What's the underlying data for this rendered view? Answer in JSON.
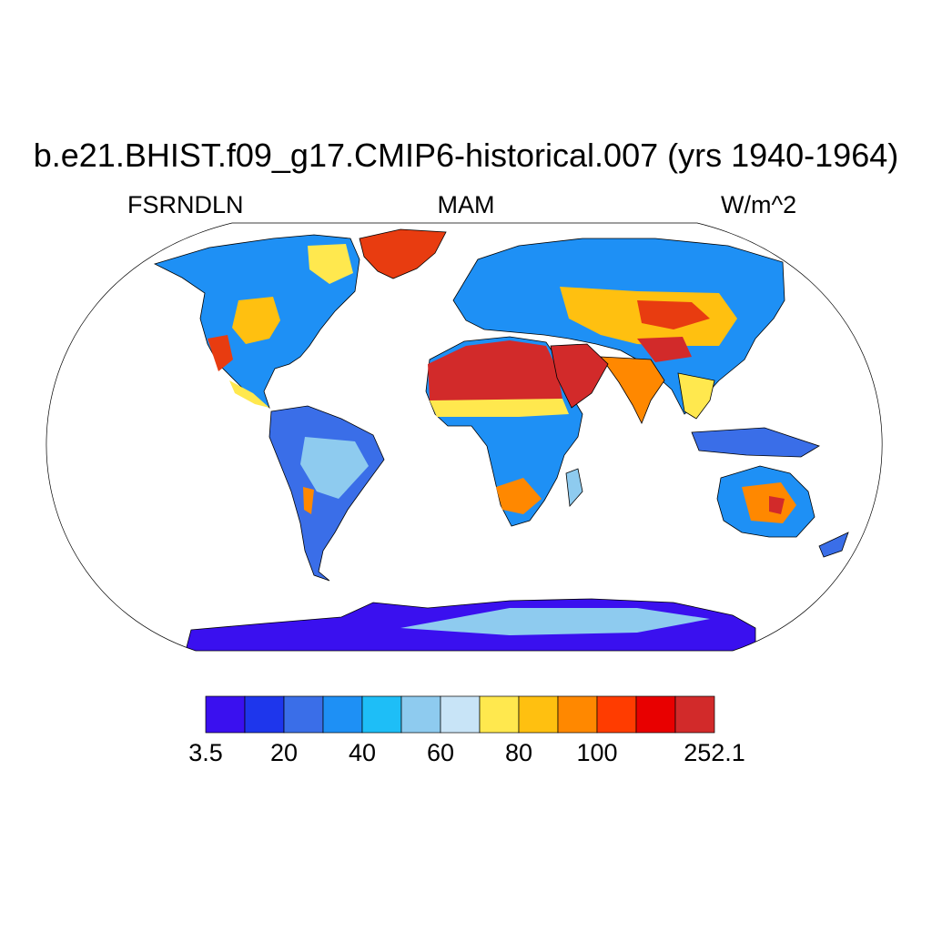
{
  "title": "b.e21.BHIST.f09_g17.CMIP6-historical.007 (yrs 1940-1964)",
  "subtitle_left": "FSRNDLN",
  "subtitle_center": "MAM",
  "subtitle_right": "W/m^2",
  "colorbar": {
    "colors": [
      "#3a10ef",
      "#1e36ec",
      "#3a6ee8",
      "#1e90f5",
      "#1ebef7",
      "#8ecbef",
      "#c8e4f7",
      "#ffe84e",
      "#ffc010",
      "#ff8800",
      "#ff3c00",
      "#e80000",
      "#d22a2a"
    ],
    "labels": [
      "3.5",
      "20",
      "40",
      "60",
      "80",
      "100",
      "252.1"
    ]
  },
  "land_color_key": {
    "sahara": "#d22a2a",
    "arabia": "#d22a2a",
    "greenland": "#e83c10",
    "antarctica": "#3a10ef",
    "antarctic_plateau": "#8ecbef",
    "default_land": "#1e90f5"
  }
}
